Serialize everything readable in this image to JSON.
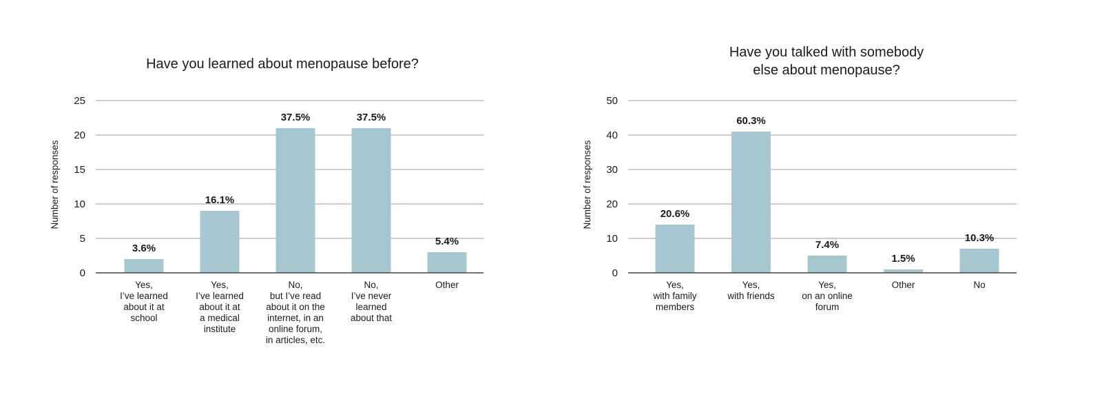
{
  "colors": {
    "bar": "#a7c7d0",
    "grid": "#9a9a9a",
    "axis": "#444444",
    "text": "#1a1a1a"
  },
  "chart_data": [
    {
      "type": "bar",
      "title": "Have you learned about menopause before?",
      "ylabel": "Number of responses",
      "ylim": [
        0,
        25
      ],
      "yticks": [
        0,
        5,
        10,
        15,
        20,
        25
      ],
      "grid": true,
      "categories": [
        [
          "Yes,",
          "I’ve learned",
          "about it at",
          "school"
        ],
        [
          "Yes,",
          "I’ve learned",
          "about it at",
          "a medical",
          "institute"
        ],
        [
          "No,",
          "but I’ve read",
          "about it on the",
          "internet, in an",
          "online forum,",
          "in articles, etc."
        ],
        [
          "No,",
          "I’ve never",
          "learned",
          "about that"
        ],
        [
          "Other"
        ]
      ],
      "values": [
        2,
        9,
        21,
        21,
        3
      ],
      "data_labels": [
        "3.6%",
        "16.1%",
        "37.5%",
        "37.5%",
        "5.4%"
      ]
    },
    {
      "type": "bar",
      "title": "Have you talked with somebody else about menopause?",
      "ylabel": "Number of responses",
      "ylim": [
        0,
        50
      ],
      "yticks": [
        0,
        10,
        20,
        30,
        40,
        50
      ],
      "grid": true,
      "categories": [
        [
          "Yes,",
          "with family",
          "members"
        ],
        [
          "Yes,",
          "with friends"
        ],
        [
          "Yes,",
          "on an online",
          "forum"
        ],
        [
          "Other"
        ],
        [
          "No"
        ]
      ],
      "values": [
        14,
        41,
        5,
        1,
        7
      ],
      "data_labels": [
        "20.6%",
        "60.3%",
        "7.4%",
        "1.5%",
        "10.3%"
      ]
    }
  ],
  "titles": {
    "chart1": "Have you learned about menopause before?",
    "chart2_line1": "Have you talked with somebody",
    "chart2_line2": "else about menopause?"
  }
}
